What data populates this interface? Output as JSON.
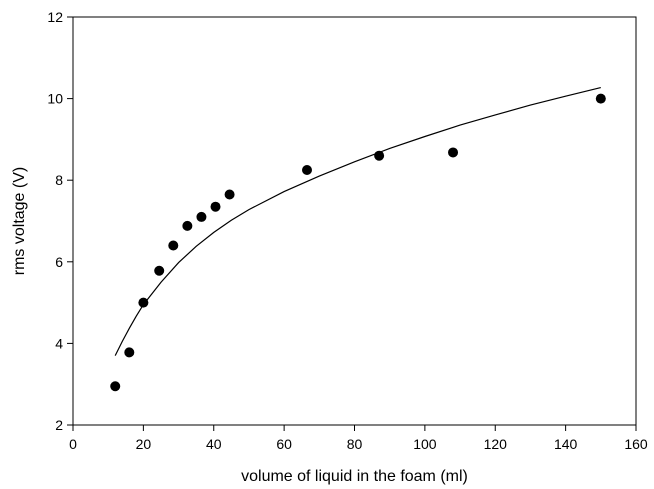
{
  "chart_data": {
    "type": "scatter",
    "title": "",
    "xlabel": "volume of liquid in the foam (ml)",
    "ylabel": "rms voltage (V)",
    "xlim": [
      0,
      160
    ],
    "ylim": [
      2,
      12
    ],
    "xticks": [
      0,
      20,
      40,
      60,
      80,
      100,
      120,
      140,
      160
    ],
    "yticks": [
      2,
      4,
      6,
      8,
      10,
      12
    ],
    "grid": false,
    "legend": "none",
    "series": [
      {
        "marker": "filled-circle",
        "color": "#000000",
        "x": [
          12,
          16,
          20,
          24.5,
          28.5,
          32.5,
          36.5,
          40.5,
          44.5,
          66.5,
          87,
          108,
          150
        ],
        "y": [
          2.95,
          3.78,
          5.0,
          5.78,
          6.4,
          6.88,
          7.1,
          7.35,
          7.65,
          8.25,
          8.6,
          8.68,
          10.0
        ]
      }
    ],
    "fit_curve": {
      "color": "#000000",
      "x": [
        12,
        14,
        16,
        18,
        20,
        25,
        30,
        35,
        40,
        45,
        50,
        60,
        70,
        80,
        90,
        100,
        110,
        120,
        130,
        140,
        150
      ],
      "y": [
        3.7,
        4.05,
        4.37,
        4.67,
        4.95,
        5.5,
        5.98,
        6.38,
        6.72,
        7.02,
        7.28,
        7.72,
        8.1,
        8.45,
        8.78,
        9.07,
        9.35,
        9.6,
        9.84,
        10.06,
        10.27
      ]
    }
  }
}
